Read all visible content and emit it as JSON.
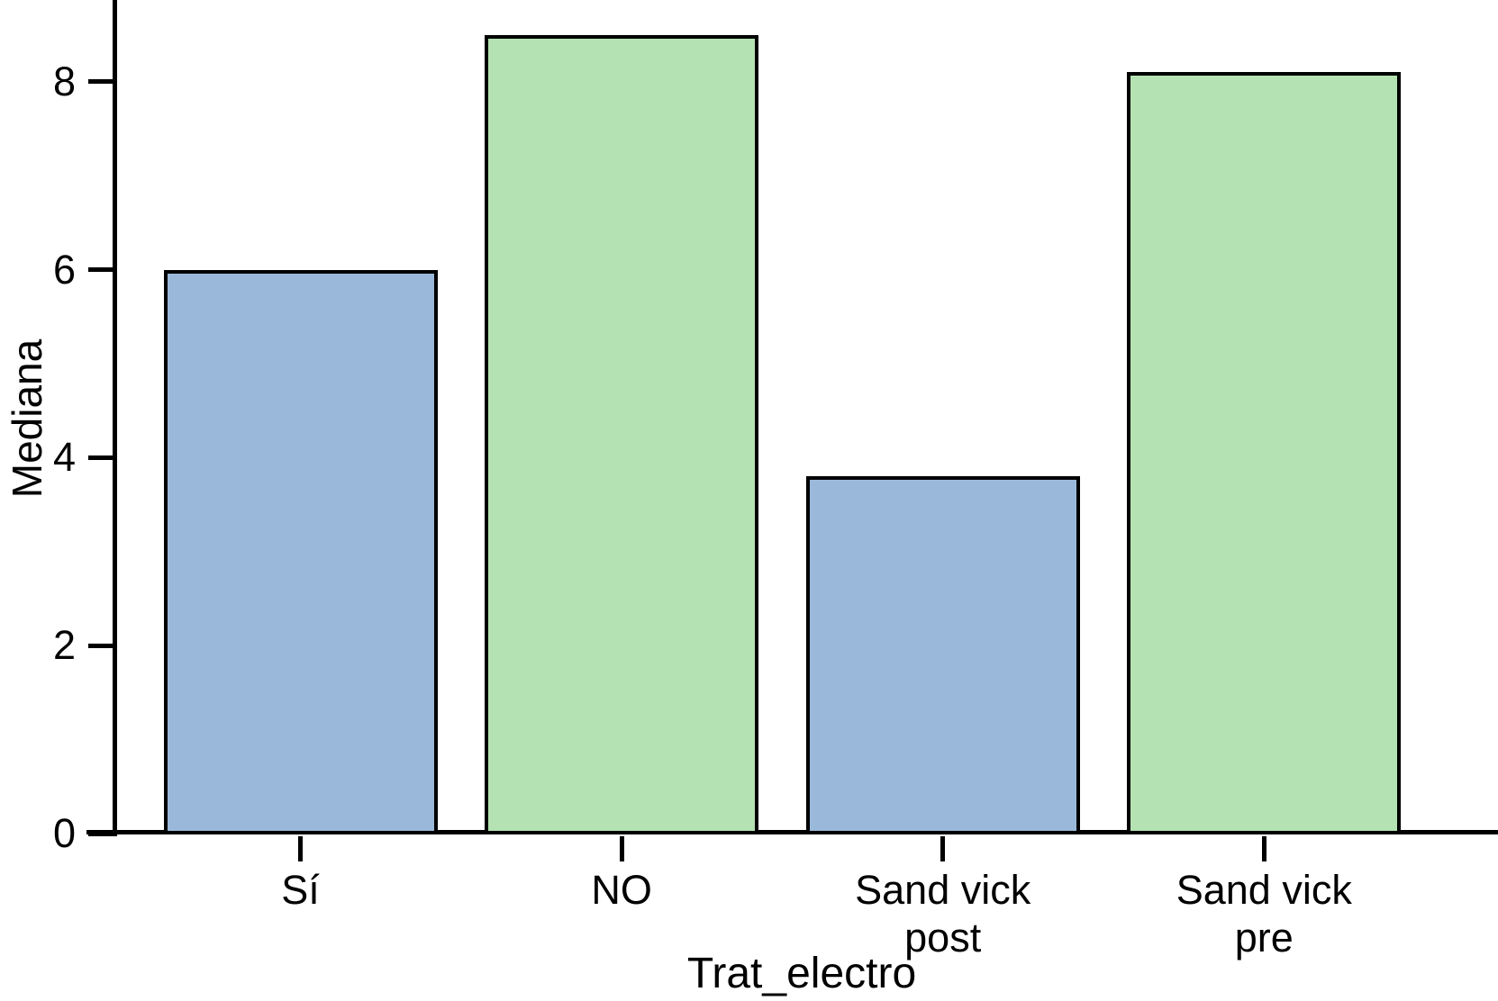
{
  "chart_data": {
    "type": "bar",
    "title": "",
    "xlabel": "Trat_electro",
    "ylabel": "Mediana",
    "categories": [
      "Sí",
      "NO",
      "Sand vick\npost",
      "Sand vick\npre"
    ],
    "values": [
      6.0,
      8.5,
      3.8,
      8.1
    ],
    "series": [
      {
        "name": "Mediana",
        "values": [
          6.0,
          8.5,
          3.8,
          8.1
        ]
      }
    ],
    "bar_colors": [
      "#9ab9da",
      "#b4e2b2",
      "#9ab9da",
      "#b4e2b2"
    ],
    "bar_border_color": "#000000",
    "axis_color": "#000000",
    "text_color": "#000000",
    "background_color": "#ffffff",
    "yticks": [
      0,
      2,
      4,
      6,
      8
    ],
    "ylim": [
      0,
      8.87
    ],
    "grid": false,
    "legend_position": "none"
  }
}
